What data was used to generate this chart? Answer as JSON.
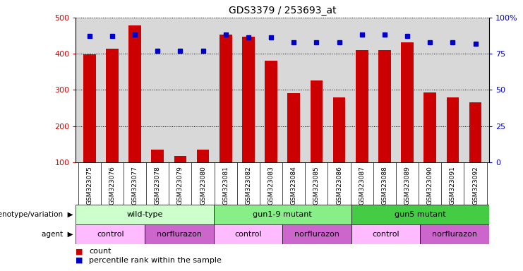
{
  "title": "GDS3379 / 253693_at",
  "samples": [
    "GSM323075",
    "GSM323076",
    "GSM323077",
    "GSM323078",
    "GSM323079",
    "GSM323080",
    "GSM323081",
    "GSM323082",
    "GSM323083",
    "GSM323084",
    "GSM323085",
    "GSM323086",
    "GSM323087",
    "GSM323088",
    "GSM323089",
    "GSM323090",
    "GSM323091",
    "GSM323092"
  ],
  "counts": [
    398,
    414,
    477,
    135,
    118,
    135,
    452,
    447,
    381,
    290,
    325,
    280,
    410,
    410,
    432,
    292,
    280,
    265
  ],
  "percentiles": [
    87,
    87,
    88,
    77,
    77,
    77,
    88,
    86,
    86,
    83,
    83,
    83,
    88,
    88,
    87,
    83,
    83,
    82
  ],
  "ylim_left": [
    100,
    500
  ],
  "ylim_right": [
    0,
    100
  ],
  "yticks_left": [
    100,
    200,
    300,
    400,
    500
  ],
  "yticks_right": [
    0,
    25,
    50,
    75,
    100
  ],
  "yticklabels_right": [
    "0",
    "25",
    "50",
    "75",
    "100%"
  ],
  "bar_color": "#cc0000",
  "dot_color": "#0000cc",
  "groups": [
    {
      "label": "wild-type",
      "start": 0,
      "end": 6,
      "color": "#ccffcc"
    },
    {
      "label": "gun1-9 mutant",
      "start": 6,
      "end": 12,
      "color": "#88ee88"
    },
    {
      "label": "gun5 mutant",
      "start": 12,
      "end": 18,
      "color": "#44cc44"
    }
  ],
  "agents": [
    {
      "label": "control",
      "start": 0,
      "end": 3,
      "color": "#ffbbff"
    },
    {
      "label": "norflurazon",
      "start": 3,
      "end": 6,
      "color": "#cc66cc"
    },
    {
      "label": "control",
      "start": 6,
      "end": 9,
      "color": "#ffbbff"
    },
    {
      "label": "norflurazon",
      "start": 9,
      "end": 12,
      "color": "#cc66cc"
    },
    {
      "label": "control",
      "start": 12,
      "end": 15,
      "color": "#ffbbff"
    },
    {
      "label": "norflurazon",
      "start": 15,
      "end": 18,
      "color": "#cc66cc"
    }
  ],
  "bar_color_hex": "#cc0000",
  "dot_color_hex": "#0000cc",
  "background_color": "#ffffff",
  "plot_bg_color": "#d8d8d8",
  "tick_label_bg": "#d0d0d0"
}
